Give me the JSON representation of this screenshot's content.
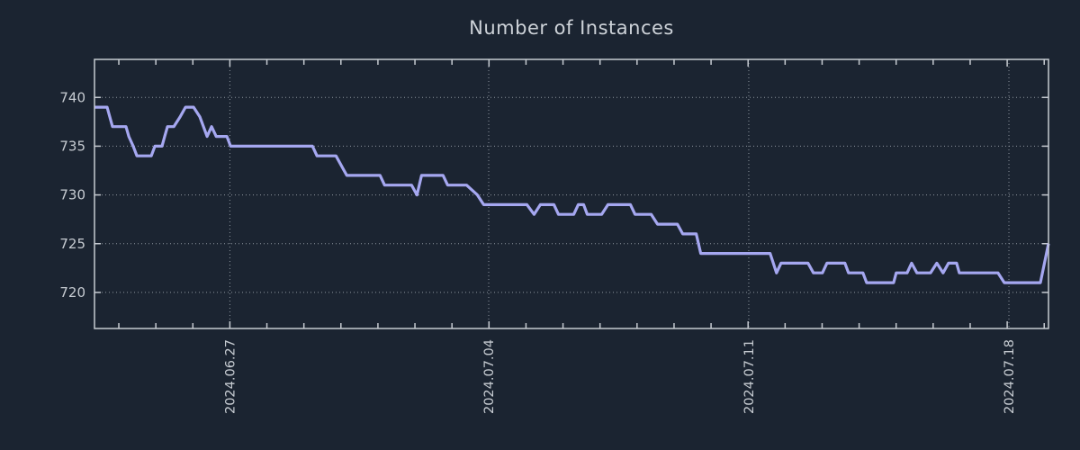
{
  "colors": {
    "background": "#1b2431",
    "axis": "#c6cbd1",
    "tick_text": "#c6cbd1",
    "grid": "#8f97a0",
    "title_text": "#cdd2d8",
    "line": "#a5a7f0"
  },
  "chart_data": {
    "type": "line",
    "title": "Number of Instances",
    "xlabel": "",
    "ylabel": "",
    "grid": true,
    "legend": "none",
    "ylim": [
      716.3,
      743.9
    ],
    "y_ticks": [
      720,
      725,
      730,
      735,
      740
    ],
    "x_ticks": [
      {
        "label": "2024.06.27",
        "f": 0.1419
      },
      {
        "label": "2024.07.04",
        "f": 0.4132
      },
      {
        "label": "2024.07.11",
        "f": 0.6858
      },
      {
        "label": "2024.07.18",
        "f": 0.9585
      }
    ],
    "x_minor_step_f": 0.0388,
    "series": [
      {
        "name": "instances",
        "color": "#a5a7f0",
        "points": [
          [
            0.0,
            739
          ],
          [
            0.0132,
            739
          ],
          [
            0.0189,
            737
          ],
          [
            0.033,
            737
          ],
          [
            0.0359,
            736
          ],
          [
            0.0406,
            735
          ],
          [
            0.0444,
            734
          ],
          [
            0.0595,
            734
          ],
          [
            0.0633,
            735
          ],
          [
            0.0708,
            735
          ],
          [
            0.0736,
            736
          ],
          [
            0.0765,
            737
          ],
          [
            0.0831,
            737
          ],
          [
            0.0897,
            738
          ],
          [
            0.0954,
            739
          ],
          [
            0.1039,
            739
          ],
          [
            0.1105,
            738
          ],
          [
            0.118,
            736
          ],
          [
            0.1227,
            737
          ],
          [
            0.1275,
            736
          ],
          [
            0.1388,
            736
          ],
          [
            0.1426,
            735
          ],
          [
            0.2285,
            735
          ],
          [
            0.2332,
            734
          ],
          [
            0.2531,
            734
          ],
          [
            0.2644,
            732
          ],
          [
            0.2993,
            732
          ],
          [
            0.3041,
            731
          ],
          [
            0.3324,
            731
          ],
          [
            0.338,
            730
          ],
          [
            0.3428,
            732
          ],
          [
            0.3654,
            732
          ],
          [
            0.3702,
            731
          ],
          [
            0.39,
            731
          ],
          [
            0.4013,
            730
          ],
          [
            0.4079,
            729
          ],
          [
            0.4533,
            729
          ],
          [
            0.4608,
            728
          ],
          [
            0.4674,
            729
          ],
          [
            0.4816,
            729
          ],
          [
            0.4863,
            728
          ],
          [
            0.5024,
            728
          ],
          [
            0.5071,
            729
          ],
          [
            0.5127,
            729
          ],
          [
            0.5165,
            728
          ],
          [
            0.5316,
            728
          ],
          [
            0.5382,
            729
          ],
          [
            0.5618,
            729
          ],
          [
            0.5666,
            728
          ],
          [
            0.5836,
            728
          ],
          [
            0.5902,
            727
          ],
          [
            0.611,
            727
          ],
          [
            0.6166,
            726
          ],
          [
            0.6308,
            726
          ],
          [
            0.6355,
            724
          ],
          [
            0.7082,
            724
          ],
          [
            0.7149,
            722
          ],
          [
            0.7196,
            723
          ],
          [
            0.7479,
            723
          ],
          [
            0.7536,
            722
          ],
          [
            0.763,
            722
          ],
          [
            0.7677,
            723
          ],
          [
            0.7866,
            723
          ],
          [
            0.7904,
            722
          ],
          [
            0.8055,
            722
          ],
          [
            0.8093,
            721
          ],
          [
            0.8376,
            721
          ],
          [
            0.8404,
            722
          ],
          [
            0.8518,
            722
          ],
          [
            0.8565,
            723
          ],
          [
            0.8621,
            722
          ],
          [
            0.8763,
            722
          ],
          [
            0.8829,
            723
          ],
          [
            0.8895,
            722
          ],
          [
            0.8952,
            723
          ],
          [
            0.9037,
            723
          ],
          [
            0.9065,
            722
          ],
          [
            0.9471,
            722
          ],
          [
            0.9537,
            721
          ],
          [
            0.9915,
            721
          ],
          [
            1.0,
            725
          ]
        ]
      }
    ]
  }
}
